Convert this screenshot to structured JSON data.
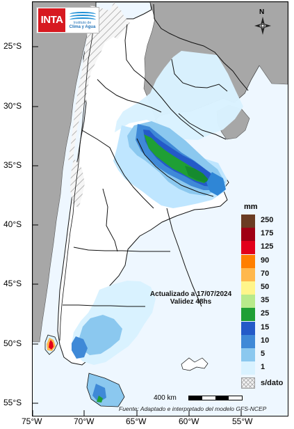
{
  "map": {
    "lat_labels": [
      "25°S",
      "30°S",
      "35°S",
      "40°S",
      "45°S",
      "50°S",
      "55°S"
    ],
    "lon_labels": [
      "75°W",
      "70°W",
      "65°W",
      "60°W",
      "55°W"
    ],
    "colors": {
      "ocean": "#eef7ff",
      "land": "#ffffff",
      "neighbors": "#a7a7a7",
      "border": "#111111",
      "no_data_hatch": "#b5b5b5",
      "light_blue": "#bfe6ff",
      "mid_blue": "#7ec6ef",
      "blue": "#2f86d6",
      "dark_blue": "#1456c9",
      "green": "#29b34a",
      "dark_green": "#168a2f"
    }
  },
  "header": {
    "inta_logo_text": "INTA",
    "climate_logo_line1": "Instituto de",
    "climate_logo_line2": "Clima y Agua",
    "north_label": "N"
  },
  "legend": {
    "title": "mm",
    "items": [
      {
        "label": "250",
        "color": "#6b3c23"
      },
      {
        "label": "175",
        "color": "#a00014"
      },
      {
        "label": "125",
        "color": "#e2001a"
      },
      {
        "label": "90",
        "color": "#ff7f00"
      },
      {
        "label": "70",
        "color": "#ffb84d"
      },
      {
        "label": "50",
        "color": "#fff58a"
      },
      {
        "label": "35",
        "color": "#b8ea8b"
      },
      {
        "label": "25",
        "color": "#1f9f35"
      },
      {
        "label": "15",
        "color": "#245ac8"
      },
      {
        "label": "10",
        "color": "#3f89d7"
      },
      {
        "label": "5",
        "color": "#8bc8ef"
      },
      {
        "label": "1",
        "color": "#d9f2ff"
      }
    ],
    "no_data_label": "s/dato"
  },
  "annotations": {
    "updated_line": "Actualizado a 17/07/2024",
    "validity_line": "Validez 48hs",
    "scale_label": "400 km",
    "source": "Fuente: Adaptado e interpretado del modelo GFS-NCEP"
  },
  "icons": {
    "north_arrow": "compass-rose-icon",
    "no_data": "hatched-pattern-icon"
  }
}
